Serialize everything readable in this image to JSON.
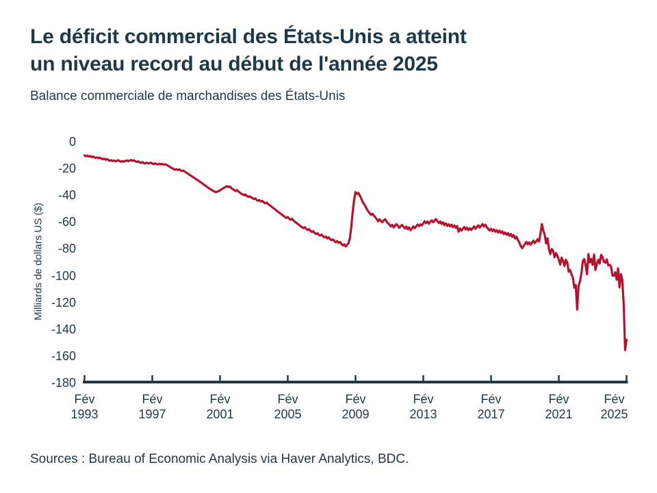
{
  "header": {
    "title_line1": "Le déficit commercial des États-Unis a atteint",
    "title_line2": "un niveau record au début de l'année 2025",
    "subtitle": "Balance commerciale de marchandises des États-Unis"
  },
  "footer": {
    "source": "Sources : Bureau of Economic Analysis via Haver Analytics, BDC."
  },
  "colors": {
    "text_navy": "#1f3847",
    "line_red": "#b7122d",
    "background": "#ffffff"
  },
  "chart_data": {
    "type": "line",
    "title": "Le déficit commercial des États-Unis a atteint un niveau record au début de l'année 2025",
    "subtitle": "Balance commerciale de marchandises des États-Unis",
    "xlabel": "",
    "ylabel": "Milliards de dollars US ($)",
    "ylim": [
      -180,
      0
    ],
    "grid": false,
    "legend": false,
    "line_color": "#b7122d",
    "axis_color": "#1f3847",
    "frequency": "monthly",
    "x_start": "Fév 1993",
    "x_end": "Fév 2025",
    "y_ticks": [
      0,
      -20,
      -40,
      -60,
      -80,
      -100,
      -120,
      -140,
      -160,
      -180
    ],
    "x_ticks": [
      {
        "month": "Fév",
        "year": "1993"
      },
      {
        "month": "Fév",
        "year": "1997"
      },
      {
        "month": "Fév",
        "year": "2001"
      },
      {
        "month": "Fév",
        "year": "2005"
      },
      {
        "month": "Fév",
        "year": "2009"
      },
      {
        "month": "Fév",
        "year": "2013"
      },
      {
        "month": "Fév",
        "year": "2017"
      },
      {
        "month": "Fév",
        "year": "2021"
      },
      {
        "month": "Fév",
        "year": "2025"
      }
    ],
    "months_per_tick": 48,
    "series_name": "Balance commerciale de marchandises des États-Unis (milliards $US)",
    "values": [
      -10.2,
      -10.9,
      -10.4,
      -11.1,
      -10.7,
      -11.4,
      -11.0,
      -11.6,
      -12.1,
      -11.7,
      -12.3,
      -12.0,
      -12.6,
      -13.1,
      -12.7,
      -13.4,
      -13.0,
      -13.7,
      -14.2,
      -13.8,
      -14.4,
      -14.0,
      -14.6,
      -14.2,
      -13.8,
      -14.5,
      -15.0,
      -14.4,
      -14.9,
      -14.3,
      -13.9,
      -14.5,
      -14.0,
      -13.7,
      -14.2,
      -13.9,
      -14.5,
      -15.1,
      -14.6,
      -15.3,
      -15.8,
      -15.2,
      -15.9,
      -16.3,
      -15.7,
      -16.2,
      -16.0,
      -15.6,
      -16.2,
      -16.8,
      -16.1,
      -16.6,
      -17.0,
      -16.4,
      -16.9,
      -16.5,
      -17.2,
      -16.8,
      -17.3,
      -17.8,
      -18.5,
      -19.1,
      -19.7,
      -20.3,
      -20.9,
      -20.4,
      -21.1,
      -20.6,
      -21.3,
      -21.9,
      -21.5,
      -22.2,
      -23.0,
      -23.7,
      -24.4,
      -25.1,
      -25.8,
      -26.5,
      -27.2,
      -27.9,
      -28.6,
      -29.3,
      -30.0,
      -30.8,
      -31.6,
      -32.4,
      -33.1,
      -33.9,
      -34.6,
      -35.3,
      -36.0,
      -36.6,
      -37.2,
      -37.7,
      -37.3,
      -36.9,
      -36.3,
      -35.6,
      -34.9,
      -34.3,
      -33.7,
      -33.2,
      -33.9,
      -33.4,
      -34.6,
      -35.4,
      -36.1,
      -36.8,
      -36.1,
      -37.2,
      -37.9,
      -38.7,
      -39.3,
      -40.0,
      -39.4,
      -40.5,
      -41.2,
      -40.7,
      -41.5,
      -42.1,
      -42.8,
      -42.3,
      -43.5,
      -44.1,
      -43.6,
      -44.7,
      -44.2,
      -45.3,
      -45.9,
      -45.4,
      -46.5,
      -47.3,
      -48.1,
      -48.9,
      -49.7,
      -50.5,
      -51.4,
      -52.2,
      -53.0,
      -53.8,
      -54.6,
      -55.4,
      -56.2,
      -56.9,
      -56.2,
      -57.6,
      -58.3,
      -57.5,
      -58.9,
      -59.7,
      -60.5,
      -61.3,
      -62.2,
      -63.0,
      -63.8,
      -64.5,
      -63.8,
      -65.1,
      -65.9,
      -65.2,
      -66.6,
      -67.4,
      -66.8,
      -68.1,
      -68.9,
      -68.3,
      -69.5,
      -70.1,
      -69.4,
      -70.7,
      -71.5,
      -70.8,
      -72.2,
      -71.4,
      -72.8,
      -73.5,
      -72.9,
      -74.2,
      -75.0,
      -74.2,
      -75.6,
      -74.8,
      -76.3,
      -77.4,
      -76.6,
      -78.2,
      -77.0,
      -75.8,
      -71.9,
      -63.5,
      -52.0,
      -43.5,
      -37.6,
      -39.0,
      -38.2,
      -40.1,
      -42.3,
      -44.8,
      -46.5,
      -48.2,
      -50.3,
      -52.0,
      -53.4,
      -54.6,
      -53.8,
      -55.2,
      -56.4,
      -57.8,
      -59.4,
      -57.9,
      -59.2,
      -60.1,
      -58.8,
      -57.9,
      -59.6,
      -60.9,
      -61.8,
      -63.2,
      -62.1,
      -64.0,
      -62.6,
      -61.5,
      -62.8,
      -64.3,
      -63.0,
      -62.2,
      -63.5,
      -64.8,
      -63.4,
      -65.3,
      -64.0,
      -66.1,
      -64.7,
      -63.2,
      -64.5,
      -63.1,
      -61.8,
      -63.0,
      -61.7,
      -62.5,
      -60.9,
      -59.4,
      -60.8,
      -59.6,
      -61.2,
      -59.8,
      -58.7,
      -60.1,
      -58.9,
      -57.8,
      -59.3,
      -60.7,
      -59.5,
      -61.4,
      -60.2,
      -62.3,
      -61.0,
      -62.9,
      -61.6,
      -63.2,
      -62.0,
      -63.8,
      -62.5,
      -64.3,
      -63.0,
      -67.2,
      -64.8,
      -66.4,
      -65.0,
      -63.7,
      -65.5,
      -64.2,
      -66.0,
      -64.6,
      -65.9,
      -64.5,
      -63.2,
      -65.0,
      -63.6,
      -62.4,
      -64.1,
      -62.8,
      -61.5,
      -63.3,
      -62.0,
      -63.9,
      -65.1,
      -66.3,
      -65.0,
      -66.8,
      -65.5,
      -67.2,
      -66.0,
      -67.8,
      -66.4,
      -68.1,
      -67.0,
      -69.0,
      -67.8,
      -69.5,
      -68.3,
      -70.2,
      -68.9,
      -71.0,
      -69.7,
      -72.3,
      -71.0,
      -73.4,
      -75.2,
      -77.8,
      -79.5,
      -78.0,
      -76.4,
      -74.8,
      -76.6,
      -75.1,
      -76.9,
      -75.4,
      -73.9,
      -75.7,
      -74.3,
      -72.8,
      -74.5,
      -68.7,
      -61.5,
      -66.0,
      -69.4,
      -75.9,
      -72.1,
      -80.1,
      -83.9,
      -80.2,
      -81.5,
      -86.2,
      -83.2,
      -85.2,
      -88.0,
      -91.8,
      -86.5,
      -89.0,
      -92.8,
      -88.1,
      -90.2,
      -97.0,
      -95.8,
      -99.1,
      -101.4,
      -108.9,
      -107.0,
      -125.4,
      -107.7,
      -104.2,
      -98.6,
      -89.3,
      -87.6,
      -92.2,
      -99.0,
      -83.9,
      -90.1,
      -87.5,
      -91.9,
      -84.2,
      -95.8,
      -91.1,
      -88.2,
      -90.9,
      -84.5,
      -86.3,
      -89.8,
      -90.3,
      -87.9,
      -92.3,
      -92.0,
      -93.0,
      -99.9,
      -100.1,
      -97.5,
      -103.1,
      -94.5,
      -108.7,
      -98.9,
      -103.2,
      -122.0,
      -155.6,
      -147.9
    ]
  }
}
